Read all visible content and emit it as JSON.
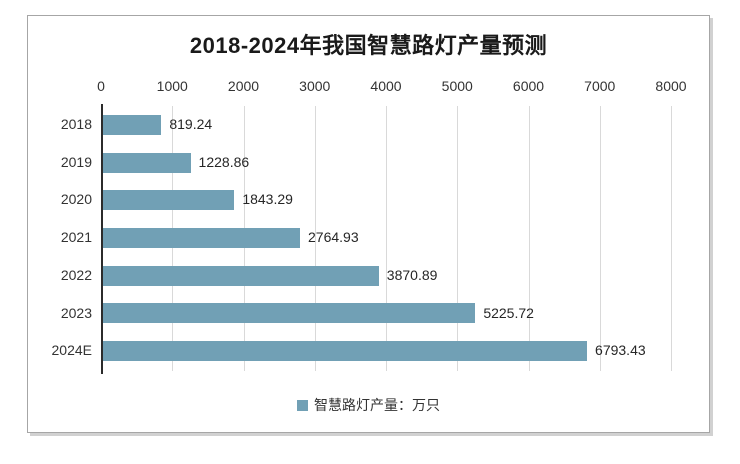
{
  "chart_data": {
    "type": "bar",
    "orientation": "horizontal",
    "title": "2018-2024年我国智慧路灯产量预测",
    "categories": [
      "2018",
      "2019",
      "2020",
      "2021",
      "2022",
      "2023",
      "2024E"
    ],
    "values": [
      819.24,
      1228.86,
      1843.29,
      2764.93,
      3870.89,
      5225.72,
      6793.43
    ],
    "value_labels": [
      "819.24",
      "1228.86",
      "1843.29",
      "2764.93",
      "3870.89",
      "5225.72",
      "6793.43"
    ],
    "xlim": [
      0,
      8000
    ],
    "xticks": [
      0,
      1000,
      2000,
      3000,
      4000,
      5000,
      6000,
      7000,
      8000
    ],
    "xtick_labels": [
      "0",
      "1000",
      "2000",
      "3000",
      "4000",
      "5000",
      "6000",
      "7000",
      "8000"
    ],
    "legend": [
      "智慧路灯产量：万只"
    ],
    "legend_position": "bottom",
    "grid": true,
    "axis_position": "top",
    "bar_color": "#71a0b5",
    "gridline_color": "#d9d9d9",
    "axis_line_color": "#2b2b2b",
    "text_color": "#333333",
    "title_color": "#1a1a1a",
    "panel_border_color": "#a6a6a6"
  }
}
